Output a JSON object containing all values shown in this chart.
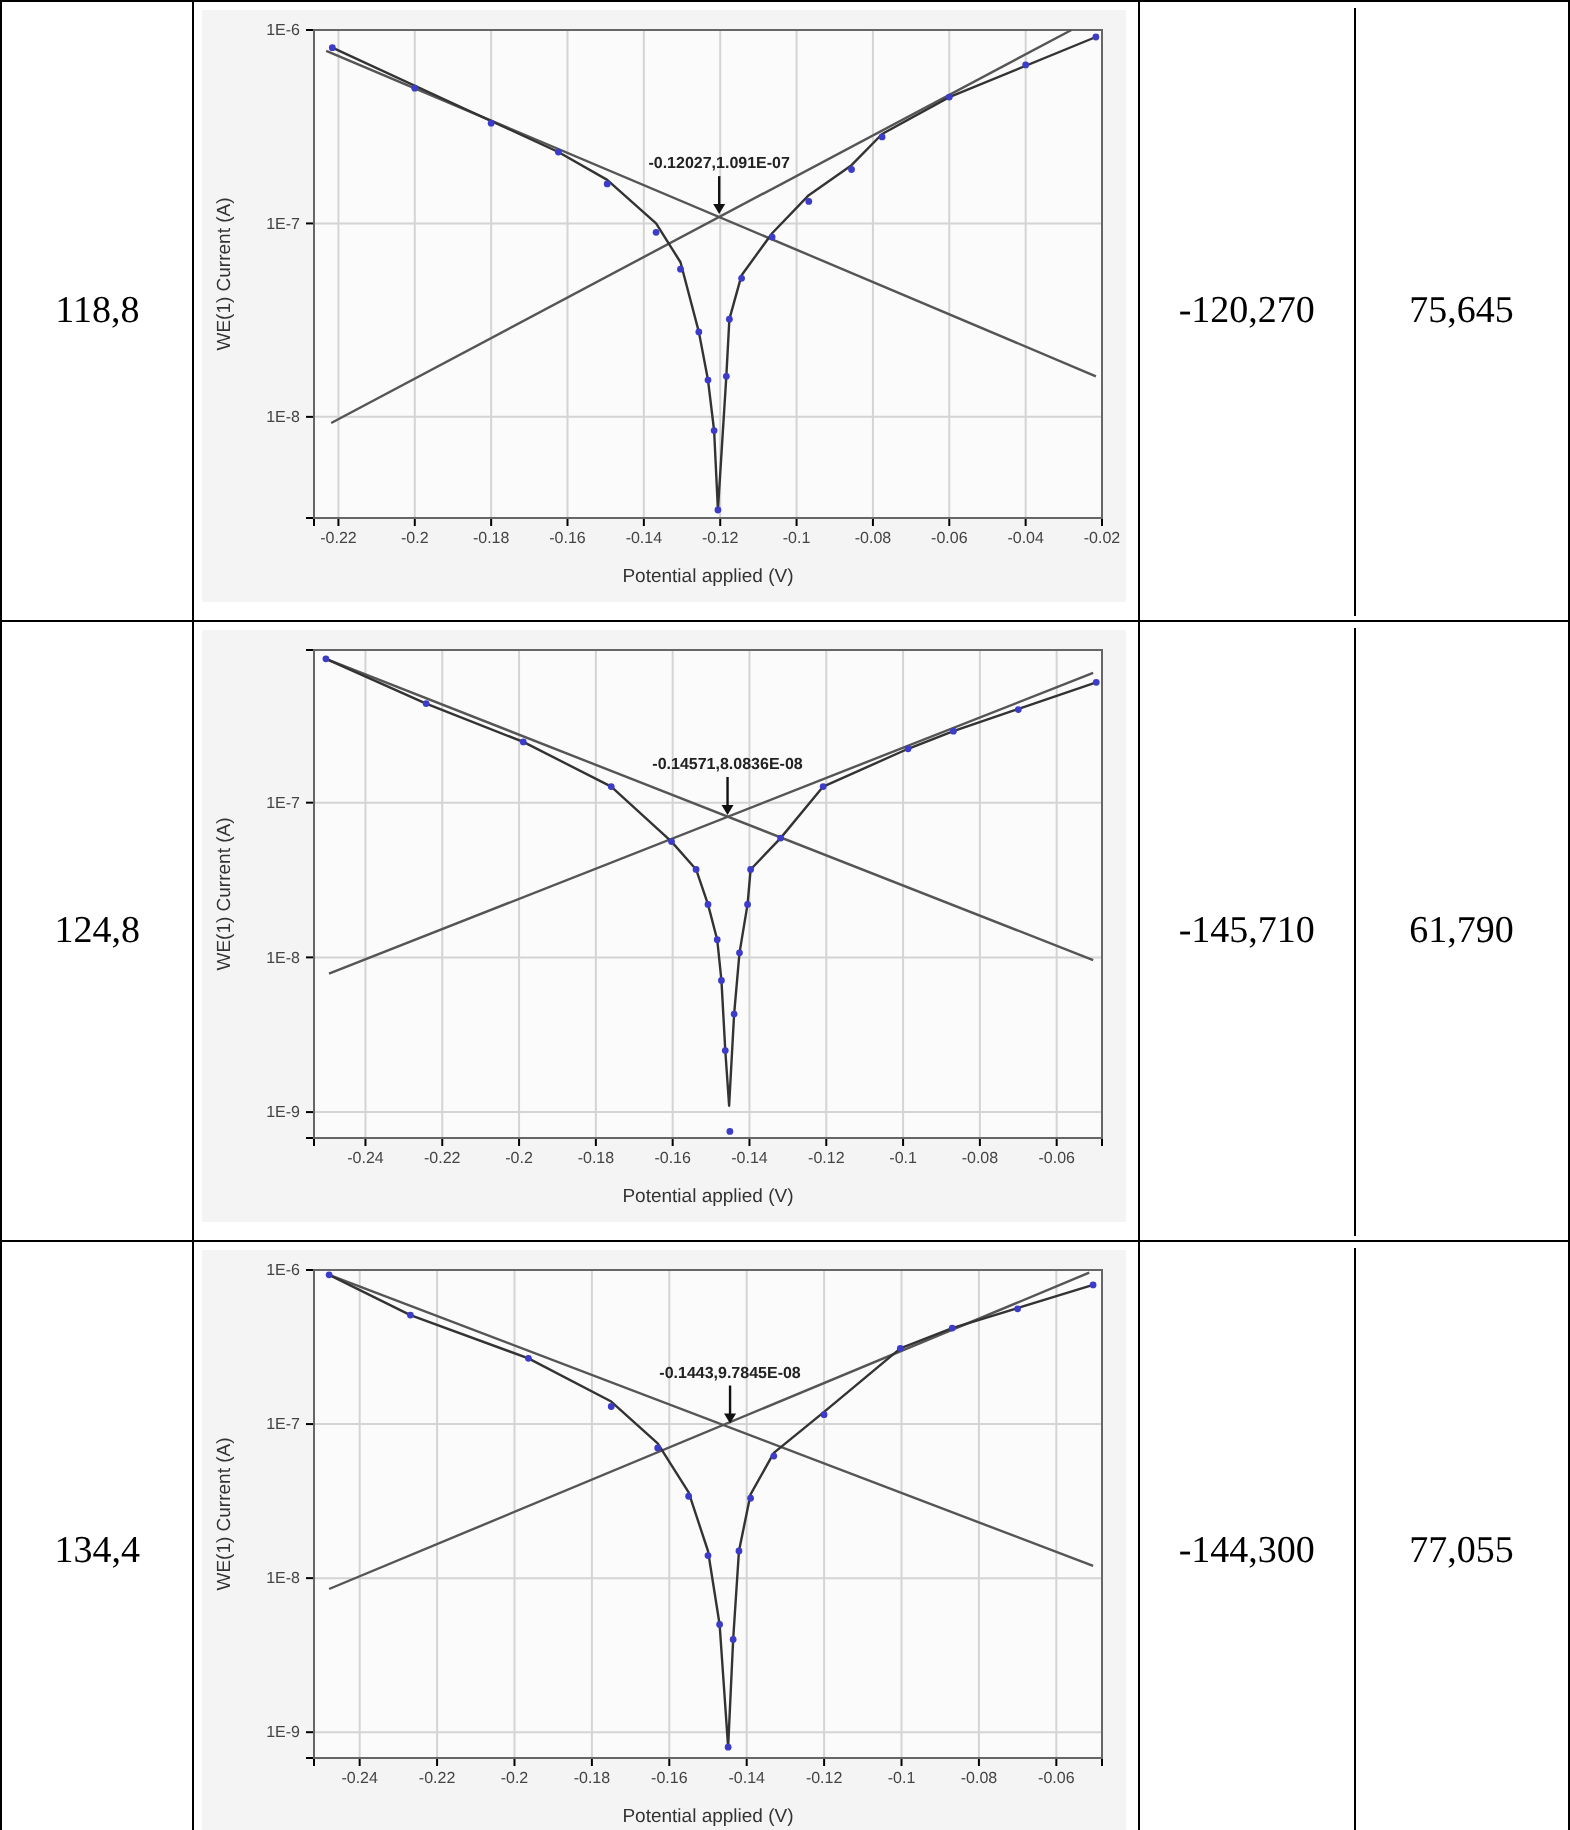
{
  "chart_data": [
    {
      "type": "other",
      "annotations": [
        "118,8"
      ]
    },
    {
      "type": "scatter",
      "xlabel": "Potential applied (V)",
      "ylabel": "WE(1) Current (A)",
      "log": "y",
      "grid": true,
      "xlim": [
        -0.2264,
        -0.02
      ],
      "ylim": [
        3e-09,
        1e-06
      ],
      "xticks": [
        -0.22,
        -0.2,
        -0.18,
        -0.16,
        -0.14,
        -0.12,
        -0.1,
        -0.08,
        -0.06,
        -0.04,
        -0.02
      ],
      "yticks": [
        {
          "value": 1e-08,
          "label": "1E-8"
        },
        {
          "value": 1e-07,
          "label": "1E-7"
        },
        {
          "value": 1e-06,
          "label": "1E-6"
        }
      ],
      "annotations": [
        {
          "text": "-0.12027,1.091E-07",
          "x": -0.12027,
          "y": 1.091e-07
        }
      ],
      "series": [
        {
          "type": "line",
          "color": "#555555",
          "x": [
            -0.2232,
            -0.0216
          ],
          "values": [
            7.8e-07,
            1.62e-08
          ]
        },
        {
          "type": "line",
          "color": "#555555",
          "x": [
            -0.2219,
            -0.028
          ],
          "values": [
            9.3e-09,
            1e-06
          ]
        },
        {
          "type": "line",
          "color": "#333333",
          "x": [
            -0.2216,
            -0.1624,
            -0.1496,
            -0.1368,
            -0.1304,
            -0.1256,
            -0.1232,
            -0.1216,
            -0.1206,
            -0.1184,
            -0.1176,
            -0.1144,
            -0.1064,
            -0.0968,
            -0.0856,
            -0.0776,
            -0.06,
            -0.0216
          ],
          "values": [
            8.1e-07,
            2.34e-07,
            1.68e-07,
            1e-07,
            6.3e-08,
            2.75e-08,
            1.55e-08,
            8.5e-09,
            3.3e-09,
            1.62e-08,
            3.2e-08,
            5.4e-08,
            8.9e-08,
            1.4e-07,
            2e-07,
            2.9e-07,
            4.5e-07,
            9.2e-07
          ]
        },
        {
          "type": "scatter",
          "marker": "circle",
          "color": "#3c3cc8",
          "x": [
            -0.2216,
            -0.2,
            -0.18,
            -0.1624,
            -0.1496,
            -0.1368,
            -0.1304,
            -0.1256,
            -0.1232,
            -0.1216,
            -0.1206,
            -0.1184,
            -0.1176,
            -0.1144,
            -0.1064,
            -0.0968,
            -0.0856,
            -0.0776,
            -0.06,
            -0.04,
            -0.0216
          ],
          "values": [
            8.1e-07,
            5e-07,
            3.3e-07,
            2.34e-07,
            1.6e-07,
            9e-08,
            5.8e-08,
            2.75e-08,
            1.55e-08,
            8.5e-09,
            3.3e-09,
            1.62e-08,
            3.2e-08,
            5.2e-08,
            8.5e-08,
            1.3e-07,
            1.9e-07,
            2.8e-07,
            4.5e-07,
            6.6e-07,
            9.2e-07
          ]
        }
      ]
    },
    {
      "type": "other",
      "annotations": [
        "-120,270",
        "75,645"
      ]
    },
    {
      "type": "other",
      "annotations": [
        "124,8"
      ]
    },
    {
      "type": "scatter",
      "xlabel": "Potential applied (V)",
      "ylabel": "WE(1) Current (A)",
      "log": "y",
      "grid": true,
      "xlim": [
        -0.2534,
        -0.0482
      ],
      "ylim": [
        6.8e-10,
        9.7e-07
      ],
      "xticks": [
        -0.24,
        -0.22,
        -0.2,
        -0.18,
        -0.16,
        -0.14,
        -0.12,
        -0.1,
        -0.08,
        -0.06
      ],
      "yticks": [
        {
          "value": 1e-09,
          "label": "1E-9"
        },
        {
          "value": 1e-08,
          "label": "1E-8"
        },
        {
          "value": 1e-07,
          "label": "1E-7"
        }
      ],
      "annotations": [
        {
          "text": "-0.14571,8.0836E-08",
          "x": -0.14571,
          "y": 8.0836e-08
        }
      ],
      "series": [
        {
          "type": "line",
          "color": "#555555",
          "x": [
            -0.2503,
            -0.0505
          ],
          "values": [
            8.5e-07,
            9.6e-09
          ]
        },
        {
          "type": "line",
          "color": "#555555",
          "x": [
            -0.2495,
            -0.0505
          ],
          "values": [
            7.85e-09,
            6.9e-07
          ]
        },
        {
          "type": "line",
          "color": "#333333",
          "x": [
            -0.2503,
            -0.2242,
            -0.1989,
            -0.176,
            -0.1603,
            -0.1539,
            -0.1508,
            -0.1484,
            -0.1473,
            -0.1463,
            -0.1453,
            -0.144,
            -0.1426,
            -0.1405,
            -0.1397,
            -0.1319,
            -0.1208,
            -0.0987,
            -0.0869,
            -0.0497
          ],
          "values": [
            8.5e-07,
            4.37e-07,
            2.47e-07,
            1.27e-07,
            5.6e-08,
            3.7e-08,
            2.2e-08,
            1.3e-08,
            7.1e-09,
            2.5e-09,
            1.1e-09,
            4.3e-09,
            1.07e-08,
            2.2e-08,
            3.7e-08,
            5.9e-08,
            1.27e-07,
            2.23e-07,
            2.9e-07,
            6e-07
          ]
        },
        {
          "type": "scatter",
          "marker": "circle",
          "color": "#3c3cc8",
          "x": [
            -0.2503,
            -0.2242,
            -0.1989,
            -0.176,
            -0.1603,
            -0.1539,
            -0.1508,
            -0.1484,
            -0.1473,
            -0.1463,
            -0.1451,
            -0.144,
            -0.1426,
            -0.1405,
            -0.1397,
            -0.1319,
            -0.1208,
            -0.0987,
            -0.0869,
            -0.07,
            -0.0497
          ],
          "values": [
            8.5e-07,
            4.37e-07,
            2.47e-07,
            1.27e-07,
            5.6e-08,
            3.7e-08,
            2.2e-08,
            1.3e-08,
            7.1e-09,
            2.5e-09,
            7.5e-10,
            4.3e-09,
            1.07e-08,
            2.2e-08,
            3.7e-08,
            5.9e-08,
            1.27e-07,
            2.23e-07,
            2.9e-07,
            4e-07,
            6e-07
          ]
        }
      ]
    },
    {
      "type": "other",
      "annotations": [
        "-145,710",
        "61,790"
      ]
    },
    {
      "type": "other",
      "annotations": [
        "134,4"
      ]
    },
    {
      "type": "scatter",
      "xlabel": "Potential applied (V)",
      "ylabel": "WE(1) Current (A)",
      "log": "y",
      "grid": true,
      "xlim": [
        -0.2518,
        -0.0482
      ],
      "ylim": [
        6.8e-10,
        1e-06
      ],
      "xticks": [
        -0.24,
        -0.22,
        -0.2,
        -0.18,
        -0.16,
        -0.14,
        -0.12,
        -0.1,
        -0.08,
        -0.06
      ],
      "yticks": [
        {
          "value": 1e-09,
          "label": "1E-9"
        },
        {
          "value": 1e-08,
          "label": "1E-8"
        },
        {
          "value": 1e-07,
          "label": "1E-7"
        },
        {
          "value": 1e-06,
          "label": "1E-6"
        }
      ],
      "annotations": [
        {
          "text": "-0.1443,9.7845E-08",
          "x": -0.1443,
          "y": 9.7845e-08
        }
      ],
      "series": [
        {
          "type": "line",
          "color": "#555555",
          "x": [
            -0.2479,
            -0.0505
          ],
          "values": [
            9.3e-07,
            1.2e-08
          ]
        },
        {
          "type": "line",
          "color": "#555555",
          "x": [
            -0.2479,
            -0.0515
          ],
          "values": [
            8.5e-09,
            9.6e-07
          ]
        },
        {
          "type": "line",
          "color": "#333333",
          "x": [
            -0.2479,
            -0.2269,
            -0.1964,
            -0.175,
            -0.163,
            -0.155,
            -0.15,
            -0.147,
            -0.1448,
            -0.1435,
            -0.142,
            -0.139,
            -0.133,
            -0.12,
            -0.1003,
            -0.0869,
            -0.0505
          ],
          "values": [
            9.3e-07,
            5.1e-07,
            2.67e-07,
            1.4e-07,
            7.5e-08,
            3.6e-08,
            1.5e-08,
            5e-09,
            8e-10,
            4e-09,
            1.5e-08,
            3.5e-08,
            6.5e-08,
            1.2e-07,
            3.1e-07,
            4.2e-07,
            8e-07
          ]
        },
        {
          "type": "scatter",
          "marker": "circle",
          "color": "#3c3cc8",
          "x": [
            -0.2479,
            -0.2269,
            -0.1964,
            -0.175,
            -0.163,
            -0.155,
            -0.15,
            -0.147,
            -0.1448,
            -0.1435,
            -0.142,
            -0.139,
            -0.133,
            -0.12,
            -0.1003,
            -0.0869,
            -0.07,
            -0.0505
          ],
          "values": [
            9.3e-07,
            5.1e-07,
            2.67e-07,
            1.3e-07,
            7e-08,
            3.4e-08,
            1.4e-08,
            5e-09,
            8e-10,
            4e-09,
            1.5e-08,
            3.3e-08,
            6.2e-08,
            1.15e-07,
            3.1e-07,
            4.2e-07,
            5.6e-07,
            8e-07
          ]
        }
      ]
    },
    {
      "type": "other",
      "annotations": [
        "-144,300",
        "77,055"
      ]
    }
  ]
}
